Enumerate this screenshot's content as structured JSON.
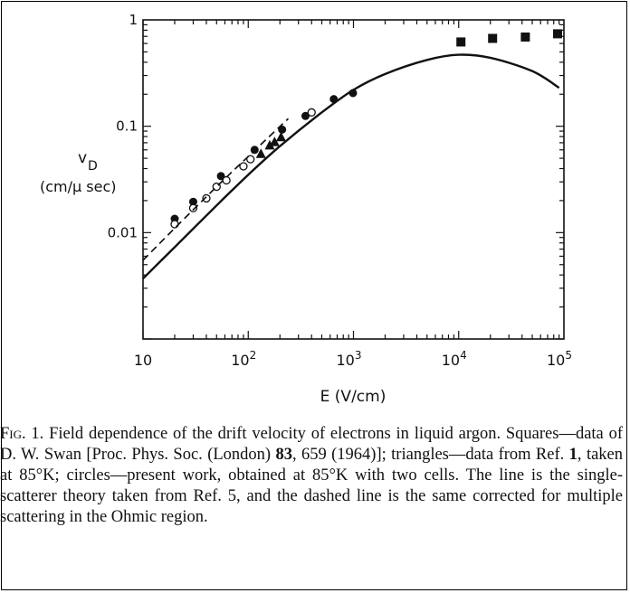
{
  "chart_data": {
    "type": "scatter",
    "xlabel": "E (V/cm)",
    "ylabel_main": "v",
    "ylabel_sub": "D",
    "ylabel_unit": "(cm/µ sec)",
    "xscale": "log",
    "yscale": "log",
    "xlim": [
      10,
      100000
    ],
    "ylim": [
      0.001,
      1
    ],
    "x_tick_labels": [
      {
        "value": 10,
        "base": "10",
        "exp": ""
      },
      {
        "value": 100,
        "base": "10",
        "exp": "2"
      },
      {
        "value": 1000,
        "base": "10",
        "exp": "3"
      },
      {
        "value": 10000,
        "base": "10",
        "exp": "4"
      },
      {
        "value": 100000,
        "base": "10",
        "exp": "5"
      }
    ],
    "y_tick_labels": [
      {
        "value": 1,
        "label": "1"
      },
      {
        "value": 0.1,
        "label": "0.1"
      },
      {
        "value": 0.01,
        "label": "0.01"
      }
    ],
    "grid": false,
    "series": [
      {
        "marker": "filled-square",
        "points": [
          [
            10500,
            0.62
          ],
          [
            21000,
            0.67
          ],
          [
            43000,
            0.69
          ],
          [
            87000,
            0.74
          ]
        ]
      },
      {
        "marker": "filled-triangle",
        "points": [
          [
            132,
            0.055
          ],
          [
            160,
            0.066
          ],
          [
            178,
            0.071
          ],
          [
            205,
            0.079
          ]
        ]
      },
      {
        "marker": "filled-circle",
        "points": [
          [
            20,
            0.0135
          ],
          [
            30,
            0.0195
          ],
          [
            55,
            0.034
          ],
          [
            115,
            0.06
          ],
          [
            210,
            0.093
          ],
          [
            350,
            0.125
          ],
          [
            650,
            0.18
          ],
          [
            990,
            0.205
          ]
        ]
      },
      {
        "marker": "open-circle",
        "points": [
          [
            20,
            0.012
          ],
          [
            30,
            0.017
          ],
          [
            40,
            0.021
          ],
          [
            50,
            0.027
          ],
          [
            62,
            0.031
          ],
          [
            90,
            0.042
          ],
          [
            105,
            0.049
          ],
          [
            400,
            0.135
          ]
        ]
      },
      {
        "marker": "solid-line",
        "points": [
          [
            10,
            0.0037
          ],
          [
            20,
            0.0073
          ],
          [
            50,
            0.018
          ],
          [
            100,
            0.035
          ],
          [
            200,
            0.065
          ],
          [
            500,
            0.135
          ],
          [
            1000,
            0.22
          ],
          [
            2000,
            0.31
          ],
          [
            5000,
            0.42
          ],
          [
            10000,
            0.47
          ],
          [
            20000,
            0.44
          ],
          [
            50000,
            0.33
          ],
          [
            90000,
            0.23
          ]
        ]
      },
      {
        "marker": "dashed-line",
        "points": [
          [
            10,
            0.0055
          ],
          [
            20,
            0.011
          ],
          [
            50,
            0.027
          ],
          [
            100,
            0.052
          ],
          [
            240,
            0.118
          ]
        ]
      }
    ]
  },
  "caption": {
    "fig_label": "Fig. 1.",
    "text_a": " Field dependence of the drift velocity of electrons in liquid argon. Squares—data of D. W. Swan [Proc. Phys. Soc. (London) ",
    "volume": "83",
    "text_b": ", 659 (1964)]; triangles—data from Ref. ",
    "ref_a": "1",
    "text_c": ", taken at 85°K; circles—present work, obtained at 85°K with two cells. The line is the single-scatterer theory taken from Ref. 5, and the dashed line is the same corrected for multiple scattering in the Ohmic region."
  }
}
